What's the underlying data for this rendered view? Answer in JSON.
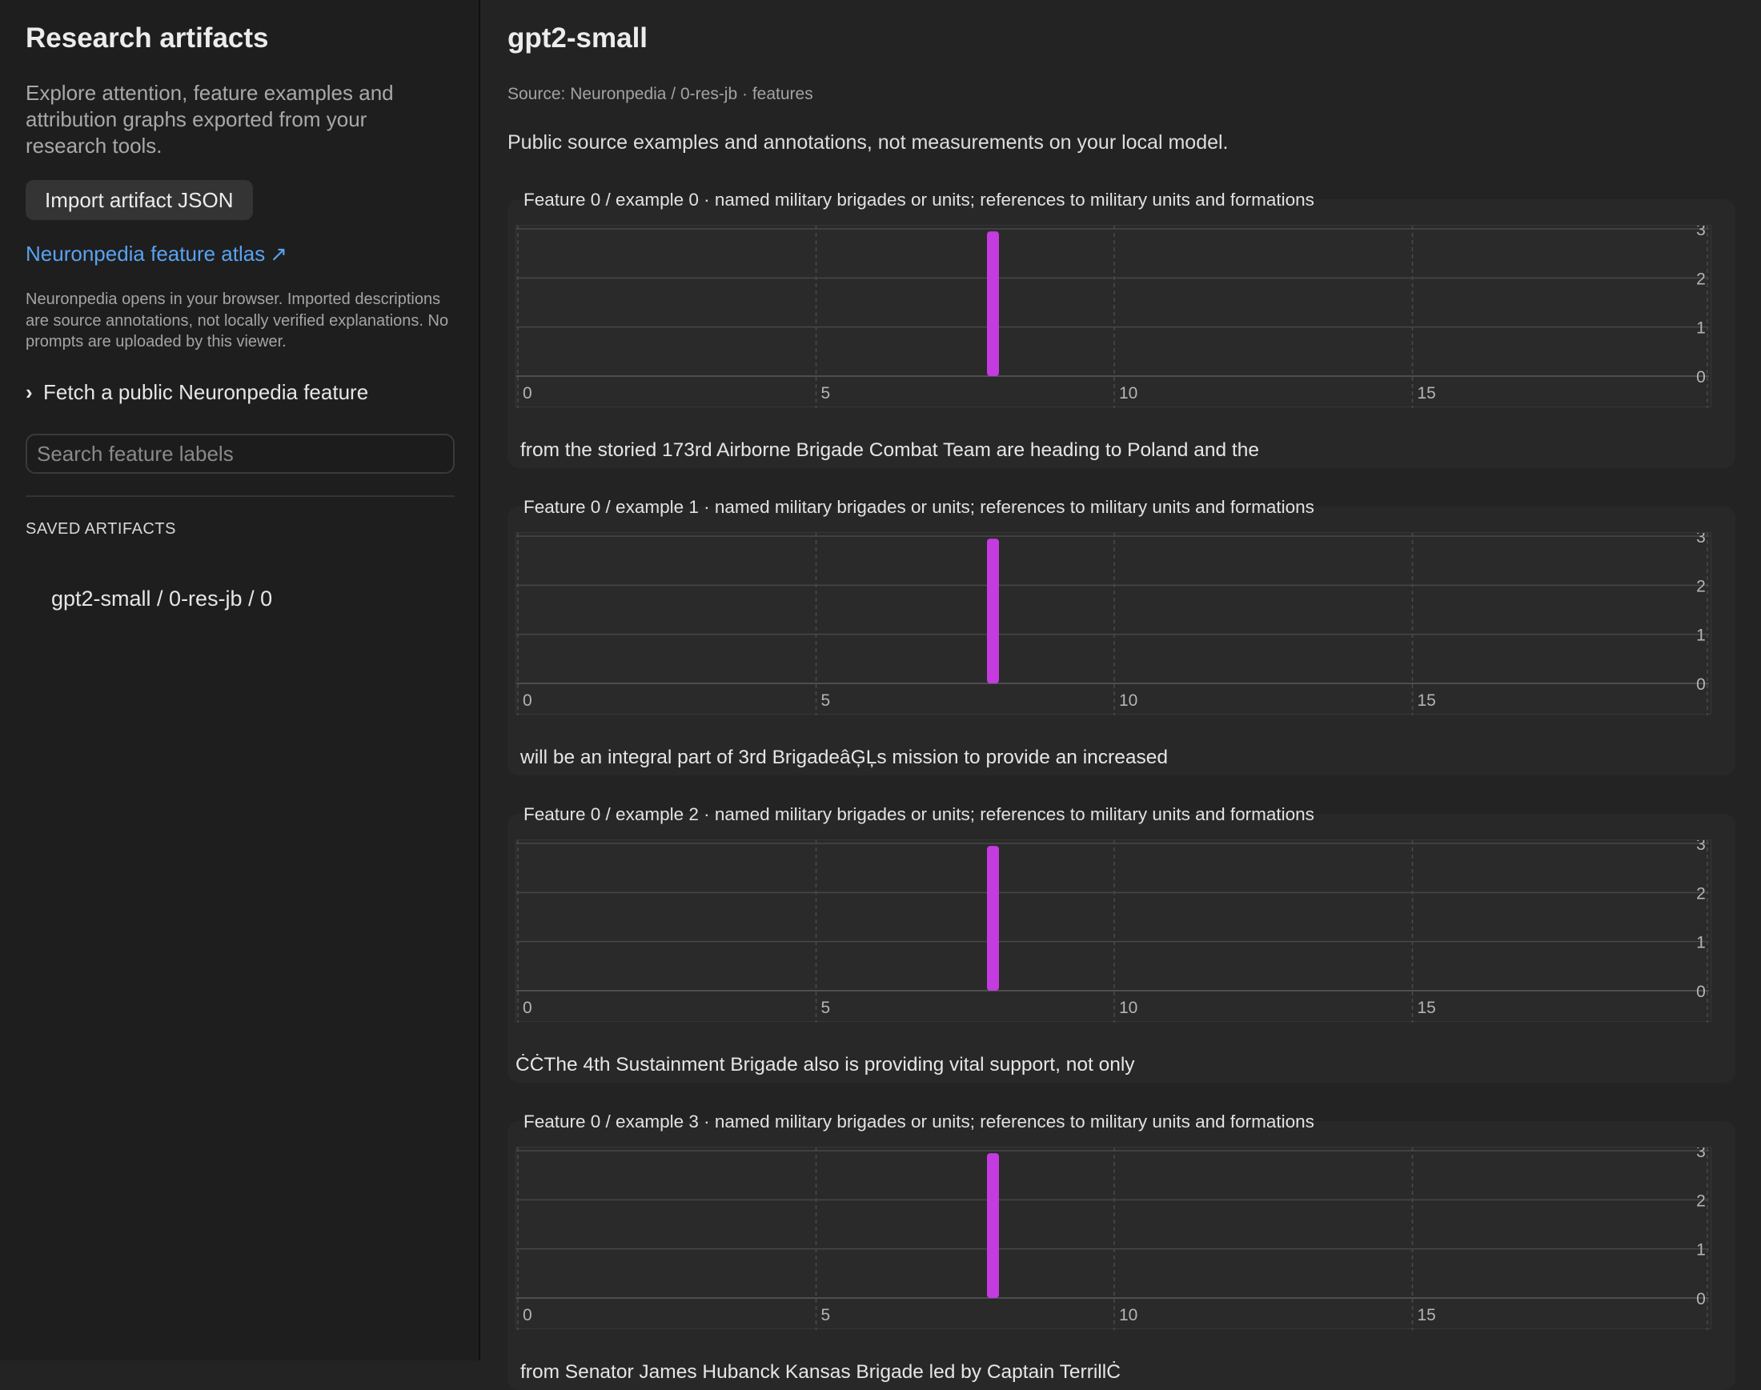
{
  "sidebar": {
    "title": "Research artifacts",
    "description": "Explore attention, feature examples and attribution graphs exported from your research tools.",
    "import_button": "Import artifact JSON",
    "atlas_link": "Neuronpedia feature atlas",
    "atlas_link_icon": "external-link-arrow",
    "note": "Neuronpedia opens in your browser. Imported descriptions are source annotations, not locally verified explanations. No prompts are uploaded by this viewer.",
    "fetch_label": "Fetch a public Neuronpedia feature",
    "search": {
      "placeholder": "Search feature labels",
      "value": ""
    },
    "saved_header": "SAVED ARTIFACTS",
    "saved_items": [
      {
        "label": "gpt2-small / 0-res-jb / 0"
      }
    ]
  },
  "main": {
    "title": "gpt2-small",
    "source": "Source: Neuronpedia / 0-res-jb · features",
    "disclaimer": "Public source examples and annotations, not measurements on your local model.",
    "examples": [
      {
        "title": "Feature 0 / example 0 · named military brigades or units; references to military units and formations",
        "text": "from the storied 173rd Airborne Brigade Combat Team are heading to Poland and the"
      },
      {
        "title": "Feature 0 / example 1 · named military brigades or units; references to military units and formations",
        "text": "will be an integral part of 3rd BrigadeâĢĻs mission to provide an increased"
      },
      {
        "title": "Feature 0 / example 2 · named military brigades or units; references to military units and formations",
        "text": "ĊĊThe 4th Sustainment Brigade also is providing vital support, not only"
      },
      {
        "title": "Feature 0 / example 3 · named military brigades or units; references to military units and formations",
        "text": "from Senator James Hubanck Kansas Brigade led by Captain TerrillĊ"
      }
    ]
  },
  "chart_data": [
    {
      "type": "bar",
      "title": "Feature 0 / example 0",
      "x_ticks": [
        0,
        5,
        10,
        15
      ],
      "y_ticks": [
        0,
        1,
        2,
        3
      ],
      "xlim": [
        0,
        20
      ],
      "ylim": [
        0,
        3
      ],
      "grid": true,
      "bar_color": "#c43be0",
      "x": [
        8
      ],
      "values": [
        2.95
      ]
    },
    {
      "type": "bar",
      "title": "Feature 0 / example 1",
      "x_ticks": [
        0,
        5,
        10,
        15
      ],
      "y_ticks": [
        0,
        1,
        2,
        3
      ],
      "xlim": [
        0,
        20
      ],
      "ylim": [
        0,
        3
      ],
      "grid": true,
      "bar_color": "#c43be0",
      "x": [
        8
      ],
      "values": [
        2.95
      ]
    },
    {
      "type": "bar",
      "title": "Feature 0 / example 2",
      "x_ticks": [
        0,
        5,
        10,
        15
      ],
      "y_ticks": [
        0,
        1,
        2,
        3
      ],
      "xlim": [
        0,
        20
      ],
      "ylim": [
        0,
        3
      ],
      "grid": true,
      "bar_color": "#c43be0",
      "x": [
        8
      ],
      "values": [
        2.95
      ]
    },
    {
      "type": "bar",
      "title": "Feature 0 / example 3",
      "x_ticks": [
        0,
        5,
        10,
        15
      ],
      "y_ticks": [
        0,
        1,
        2,
        3
      ],
      "xlim": [
        0,
        20
      ],
      "ylim": [
        0,
        3
      ],
      "grid": true,
      "bar_color": "#c43be0",
      "x": [
        8
      ],
      "values": [
        2.95
      ]
    }
  ]
}
